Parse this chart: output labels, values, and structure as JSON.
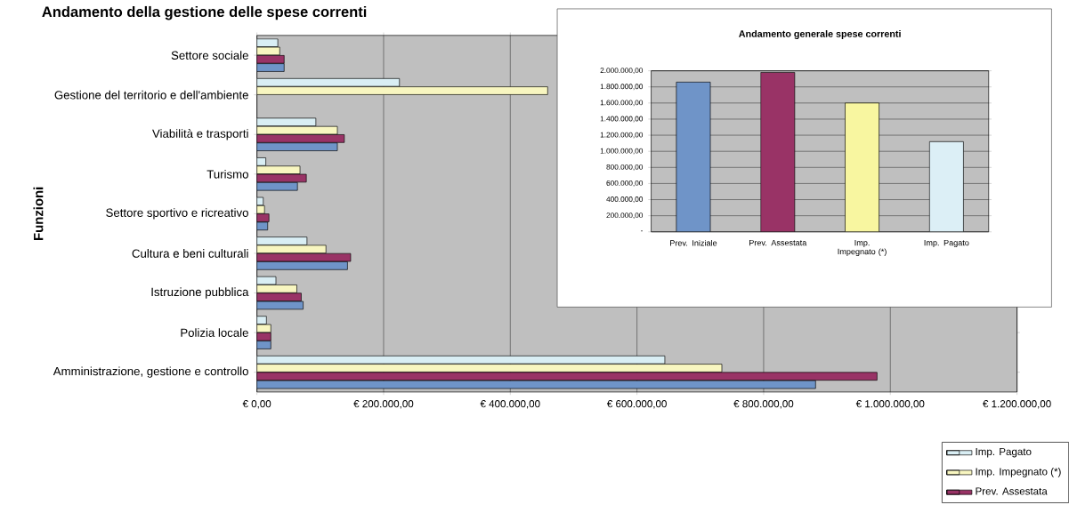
{
  "chart_data": [
    {
      "type": "bar",
      "orientation": "horizontal",
      "title": "Andamento della gestione delle spese correnti",
      "ylabel": "Funzioni",
      "categories": [
        "Settore sociale",
        "Gestione del territorio e dell'ambiente",
        "Viabilità e trasporti",
        "Turismo",
        "Settore sportivo e ricreativo",
        "Cultura e beni culturali",
        "Istruzione pubblica",
        "Polizia locale",
        "Amministrazione, gestione e controllo"
      ],
      "series": [
        {
          "name": "Imp. Pagato",
          "color": "#d9eef4",
          "values": [
            33000,
            225000,
            93000,
            14000,
            10000,
            79000,
            30000,
            15000,
            644000
          ]
        },
        {
          "name": "Imp. Impegnato (*)",
          "color": "#f8f6c0",
          "values": [
            36000,
            459000,
            127000,
            68000,
            12000,
            109000,
            63000,
            22000,
            734000
          ]
        },
        {
          "name": "Prev.  Assestata",
          "color": "#993366",
          "values": [
            43000,
            null,
            138000,
            78000,
            19000,
            148000,
            70000,
            22000,
            979000
          ]
        },
        {
          "color": "#6f94c8",
          "values": [
            43000,
            null,
            127000,
            64000,
            17000,
            143000,
            73000,
            22000,
            882000
          ]
        }
      ],
      "xlim": [
        0,
        1200000
      ],
      "xticks": [
        {
          "value": 0,
          "label": "€ 0,00"
        },
        {
          "value": 200000,
          "label": "€ 200.000,00"
        },
        {
          "value": 400000,
          "label": "€ 400.000,00"
        },
        {
          "value": 600000,
          "label": "€ 600.000,00"
        },
        {
          "value": 800000,
          "label": "€ 800.000,00"
        },
        {
          "value": 1000000,
          "label": "€ 1.000.000,00"
        },
        {
          "value": 1200000,
          "label": "€ 1.200.000,00"
        }
      ],
      "grid": "x",
      "legend": "bottom right"
    },
    {
      "type": "bar",
      "title": "Andamento generale spese correnti",
      "categories": [
        "Prev.  Iniziale",
        "Prev.  Assestata",
        "Imp. Impegnato (*)",
        "Imp. Pagato"
      ],
      "values": [
        1860000,
        1980000,
        1600000,
        1120000
      ],
      "colors": [
        "#6f94c8",
        "#993366",
        "#f8f6a0",
        "#dceff6"
      ],
      "ylim": [
        0,
        2000000
      ],
      "yticks": [
        {
          "value": 0,
          "label": "-"
        },
        {
          "value": 200000,
          "label": "200.000,00"
        },
        {
          "value": 400000,
          "label": "400.000,00"
        },
        {
          "value": 600000,
          "label": "600.000,00"
        },
        {
          "value": 800000,
          "label": "800.000,00"
        },
        {
          "value": 1000000,
          "label": "1.000.000,00"
        },
        {
          "value": 1200000,
          "label": "1.200.000,00"
        },
        {
          "value": 1400000,
          "label": "1.400.000,00"
        },
        {
          "value": 1600000,
          "label": "1.600.000,00"
        },
        {
          "value": 1800000,
          "label": "1.800.000,00"
        },
        {
          "value": 2000000,
          "label": "2.000.000,00"
        }
      ],
      "grid": "y"
    }
  ]
}
